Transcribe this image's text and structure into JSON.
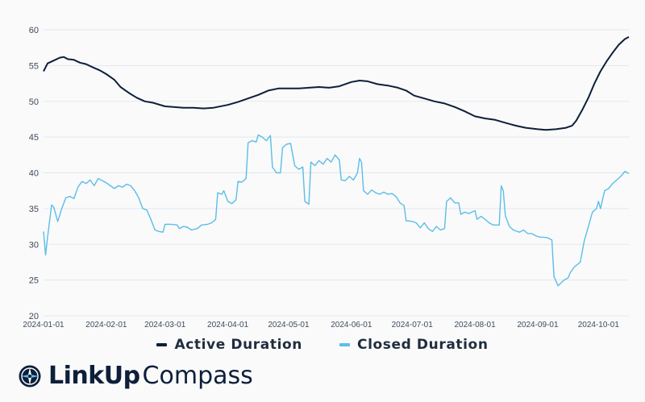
{
  "chart_data": {
    "type": "line",
    "title": "",
    "xlabel": "",
    "ylabel": "",
    "x_range": [
      "2024-01-01",
      "2024-10-16"
    ],
    "ylim": [
      20,
      60
    ],
    "yticks": [
      20,
      25,
      30,
      35,
      40,
      45,
      50,
      55,
      60
    ],
    "xticks": [
      "2024-01-01",
      "2024-02-01",
      "2024-03-01",
      "2024-04-01",
      "2024-05-01",
      "2024-06-01",
      "2024-07-01",
      "2024-08-01",
      "2024-09-01",
      "2024-10-01"
    ],
    "grid": "horizontal",
    "legend_position": "bottom",
    "series": [
      {
        "name": "Active Duration",
        "color": "#0d1f3a",
        "points": [
          [
            "2024-01-01",
            54.2
          ],
          [
            "2024-01-03",
            55.3
          ],
          [
            "2024-01-06",
            55.7
          ],
          [
            "2024-01-09",
            56.1
          ],
          [
            "2024-01-11",
            56.2
          ],
          [
            "2024-01-13",
            55.9
          ],
          [
            "2024-01-16",
            55.8
          ],
          [
            "2024-01-19",
            55.4
          ],
          [
            "2024-01-22",
            55.2
          ],
          [
            "2024-01-25",
            54.8
          ],
          [
            "2024-01-29",
            54.3
          ],
          [
            "2024-02-01",
            53.8
          ],
          [
            "2024-02-05",
            53.0
          ],
          [
            "2024-02-08",
            52.0
          ],
          [
            "2024-02-12",
            51.2
          ],
          [
            "2024-02-16",
            50.5
          ],
          [
            "2024-02-20",
            50.0
          ],
          [
            "2024-02-24",
            49.8
          ],
          [
            "2024-03-01",
            49.3
          ],
          [
            "2024-03-05",
            49.2
          ],
          [
            "2024-03-10",
            49.1
          ],
          [
            "2024-03-15",
            49.1
          ],
          [
            "2024-03-20",
            49.0
          ],
          [
            "2024-03-25",
            49.1
          ],
          [
            "2024-04-01",
            49.5
          ],
          [
            "2024-04-06",
            49.9
          ],
          [
            "2024-04-11",
            50.4
          ],
          [
            "2024-04-16",
            50.9
          ],
          [
            "2024-04-21",
            51.5
          ],
          [
            "2024-04-26",
            51.8
          ],
          [
            "2024-05-01",
            51.8
          ],
          [
            "2024-05-06",
            51.8
          ],
          [
            "2024-05-11",
            51.9
          ],
          [
            "2024-05-16",
            52.0
          ],
          [
            "2024-05-21",
            51.9
          ],
          [
            "2024-05-26",
            52.1
          ],
          [
            "2024-06-01",
            52.7
          ],
          [
            "2024-06-05",
            52.9
          ],
          [
            "2024-06-09",
            52.8
          ],
          [
            "2024-06-14",
            52.4
          ],
          [
            "2024-06-19",
            52.2
          ],
          [
            "2024-06-24",
            51.9
          ],
          [
            "2024-06-28",
            51.5
          ],
          [
            "2024-07-02",
            50.8
          ],
          [
            "2024-07-07",
            50.4
          ],
          [
            "2024-07-12",
            50.0
          ],
          [
            "2024-07-17",
            49.7
          ],
          [
            "2024-07-22",
            49.2
          ],
          [
            "2024-07-27",
            48.6
          ],
          [
            "2024-08-01",
            47.9
          ],
          [
            "2024-08-06",
            47.6
          ],
          [
            "2024-08-11",
            47.4
          ],
          [
            "2024-08-16",
            47.0
          ],
          [
            "2024-08-21",
            46.6
          ],
          [
            "2024-08-26",
            46.3
          ],
          [
            "2024-09-01",
            46.1
          ],
          [
            "2024-09-05",
            46.0
          ],
          [
            "2024-09-10",
            46.1
          ],
          [
            "2024-09-15",
            46.3
          ],
          [
            "2024-09-18",
            46.6
          ],
          [
            "2024-09-20",
            47.3
          ],
          [
            "2024-09-23",
            48.8
          ],
          [
            "2024-09-26",
            50.5
          ],
          [
            "2024-09-29",
            52.5
          ],
          [
            "2024-10-02",
            54.2
          ],
          [
            "2024-10-05",
            55.6
          ],
          [
            "2024-10-08",
            56.8
          ],
          [
            "2024-10-11",
            57.9
          ],
          [
            "2024-10-14",
            58.7
          ],
          [
            "2024-10-16",
            59.0
          ]
        ]
      },
      {
        "name": "Closed Duration",
        "color": "#5bbde9",
        "points": [
          [
            "2024-01-01",
            31.8
          ],
          [
            "2024-01-02",
            28.5
          ],
          [
            "2024-01-03",
            31.0
          ],
          [
            "2024-01-05",
            35.5
          ],
          [
            "2024-01-06",
            35.2
          ],
          [
            "2024-01-08",
            33.2
          ],
          [
            "2024-01-10",
            35.0
          ],
          [
            "2024-01-12",
            36.5
          ],
          [
            "2024-01-14",
            36.7
          ],
          [
            "2024-01-16",
            36.4
          ],
          [
            "2024-01-18",
            38.0
          ],
          [
            "2024-01-20",
            38.8
          ],
          [
            "2024-01-22",
            38.5
          ],
          [
            "2024-01-24",
            39.0
          ],
          [
            "2024-01-26",
            38.2
          ],
          [
            "2024-01-28",
            39.2
          ],
          [
            "2024-02-01",
            38.6
          ],
          [
            "2024-02-03",
            38.2
          ],
          [
            "2024-02-05",
            37.8
          ],
          [
            "2024-02-07",
            38.2
          ],
          [
            "2024-02-09",
            38.0
          ],
          [
            "2024-02-11",
            38.4
          ],
          [
            "2024-02-13",
            38.2
          ],
          [
            "2024-02-15",
            37.5
          ],
          [
            "2024-02-17",
            36.5
          ],
          [
            "2024-02-19",
            35.0
          ],
          [
            "2024-02-21",
            34.8
          ],
          [
            "2024-02-23",
            33.5
          ],
          [
            "2024-02-25",
            32.0
          ],
          [
            "2024-02-27",
            31.8
          ],
          [
            "2024-02-29",
            31.7
          ],
          [
            "2024-03-01",
            32.8
          ],
          [
            "2024-03-04",
            32.8
          ],
          [
            "2024-03-07",
            32.7
          ],
          [
            "2024-03-08",
            32.2
          ],
          [
            "2024-03-10",
            32.5
          ],
          [
            "2024-03-12",
            32.4
          ],
          [
            "2024-03-14",
            32.0
          ],
          [
            "2024-03-17",
            32.2
          ],
          [
            "2024-03-19",
            32.7
          ],
          [
            "2024-03-22",
            32.8
          ],
          [
            "2024-03-24",
            33.0
          ],
          [
            "2024-03-26",
            33.5
          ],
          [
            "2024-03-27",
            37.2
          ],
          [
            "2024-03-29",
            37.0
          ],
          [
            "2024-03-30",
            37.5
          ],
          [
            "2024-04-01",
            36.0
          ],
          [
            "2024-04-03",
            35.7
          ],
          [
            "2024-04-05",
            36.2
          ],
          [
            "2024-04-06",
            38.8
          ],
          [
            "2024-04-08",
            38.7
          ],
          [
            "2024-04-10",
            39.2
          ],
          [
            "2024-04-11",
            44.2
          ],
          [
            "2024-04-13",
            44.5
          ],
          [
            "2024-04-15",
            44.3
          ],
          [
            "2024-04-16",
            45.3
          ],
          [
            "2024-04-18",
            45.0
          ],
          [
            "2024-04-20",
            44.5
          ],
          [
            "2024-04-22",
            45.2
          ],
          [
            "2024-04-23",
            40.8
          ],
          [
            "2024-04-25",
            40.0
          ],
          [
            "2024-04-27",
            40.0
          ],
          [
            "2024-04-28",
            43.5
          ],
          [
            "2024-04-30",
            44.0
          ],
          [
            "2024-05-02",
            44.1
          ],
          [
            "2024-05-04",
            41.0
          ],
          [
            "2024-05-06",
            40.5
          ],
          [
            "2024-05-08",
            40.8
          ],
          [
            "2024-05-09",
            36.0
          ],
          [
            "2024-05-11",
            35.6
          ],
          [
            "2024-05-12",
            41.5
          ],
          [
            "2024-05-14",
            41.0
          ],
          [
            "2024-05-16",
            41.7
          ],
          [
            "2024-05-18",
            41.2
          ],
          [
            "2024-05-20",
            42.0
          ],
          [
            "2024-05-22",
            41.5
          ],
          [
            "2024-05-24",
            42.5
          ],
          [
            "2024-05-26",
            41.8
          ],
          [
            "2024-05-27",
            39.0
          ],
          [
            "2024-05-29",
            38.9
          ],
          [
            "2024-05-31",
            39.5
          ],
          [
            "2024-06-02",
            39.0
          ],
          [
            "2024-06-04",
            40.0
          ],
          [
            "2024-06-05",
            42.0
          ],
          [
            "2024-06-06",
            41.5
          ],
          [
            "2024-06-07",
            37.5
          ],
          [
            "2024-06-09",
            37.0
          ],
          [
            "2024-06-11",
            37.6
          ],
          [
            "2024-06-13",
            37.2
          ],
          [
            "2024-06-15",
            37.0
          ],
          [
            "2024-06-17",
            37.3
          ],
          [
            "2024-06-19",
            37.0
          ],
          [
            "2024-06-21",
            37.1
          ],
          [
            "2024-06-23",
            36.7
          ],
          [
            "2024-06-25",
            35.8
          ],
          [
            "2024-06-27",
            35.4
          ],
          [
            "2024-06-28",
            33.3
          ],
          [
            "2024-07-01",
            33.2
          ],
          [
            "2024-07-03",
            33.0
          ],
          [
            "2024-07-05",
            32.3
          ],
          [
            "2024-07-07",
            33.0
          ],
          [
            "2024-07-09",
            32.2
          ],
          [
            "2024-07-11",
            31.8
          ],
          [
            "2024-07-13",
            32.5
          ],
          [
            "2024-07-15",
            32.0
          ],
          [
            "2024-07-17",
            32.2
          ],
          [
            "2024-07-18",
            36.0
          ],
          [
            "2024-07-20",
            36.5
          ],
          [
            "2024-07-22",
            35.8
          ],
          [
            "2024-07-24",
            35.8
          ],
          [
            "2024-07-25",
            34.2
          ],
          [
            "2024-07-27",
            34.5
          ],
          [
            "2024-07-29",
            34.3
          ],
          [
            "2024-08-01",
            34.7
          ],
          [
            "2024-08-02",
            33.5
          ],
          [
            "2024-08-04",
            33.9
          ],
          [
            "2024-08-06",
            33.5
          ],
          [
            "2024-08-08",
            33.0
          ],
          [
            "2024-08-10",
            32.7
          ],
          [
            "2024-08-13",
            32.7
          ],
          [
            "2024-08-14",
            38.2
          ],
          [
            "2024-08-15",
            37.5
          ],
          [
            "2024-08-16",
            34.0
          ],
          [
            "2024-08-18",
            32.5
          ],
          [
            "2024-08-20",
            32.0
          ],
          [
            "2024-08-23",
            31.7
          ],
          [
            "2024-08-25",
            32.0
          ],
          [
            "2024-08-27",
            31.5
          ],
          [
            "2024-08-29",
            31.5
          ],
          [
            "2024-08-31",
            31.2
          ],
          [
            "2024-09-02",
            31.0
          ],
          [
            "2024-09-04",
            31.0
          ],
          [
            "2024-09-06",
            30.9
          ],
          [
            "2024-09-08",
            30.6
          ],
          [
            "2024-09-09",
            25.5
          ],
          [
            "2024-09-11",
            24.2
          ],
          [
            "2024-09-14",
            25.0
          ],
          [
            "2024-09-16",
            25.3
          ],
          [
            "2024-09-17",
            26.0
          ],
          [
            "2024-09-19",
            26.8
          ],
          [
            "2024-09-22",
            27.5
          ],
          [
            "2024-09-24",
            30.5
          ],
          [
            "2024-09-26",
            32.5
          ],
          [
            "2024-09-28",
            34.5
          ],
          [
            "2024-09-30",
            35.0
          ],
          [
            "2024-10-01",
            36.0
          ],
          [
            "2024-10-02",
            35.0
          ],
          [
            "2024-10-04",
            37.5
          ],
          [
            "2024-10-06",
            37.8
          ],
          [
            "2024-10-08",
            38.5
          ],
          [
            "2024-10-10",
            39.0
          ],
          [
            "2024-10-12",
            39.5
          ],
          [
            "2024-10-14",
            40.2
          ],
          [
            "2024-10-16",
            39.9
          ]
        ]
      }
    ]
  },
  "legend": {
    "items": [
      {
        "label": "Active Duration",
        "color": "#0d1f3a"
      },
      {
        "label": "Closed Duration",
        "color": "#5bbde9"
      }
    ]
  },
  "branding": {
    "logo_bold": "LinkUp",
    "logo_light": "Compass",
    "logo_icon": "compass-icon"
  },
  "colors": {
    "background": "#fafafa",
    "grid": "#e2e7ef",
    "axis_text": "#3d4b5c"
  }
}
